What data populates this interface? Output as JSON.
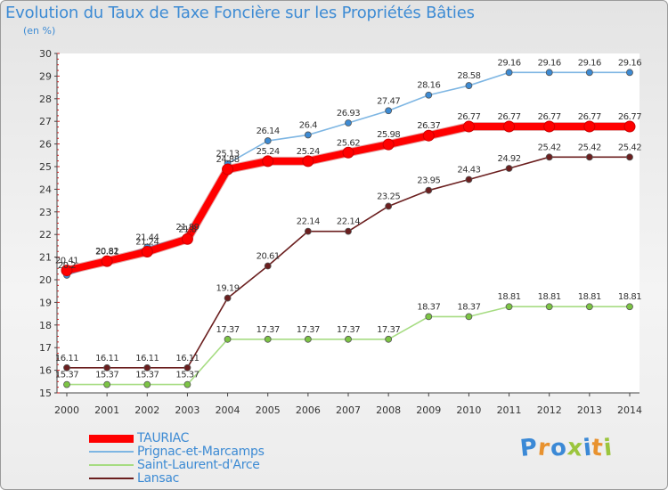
{
  "header": {
    "title": "Evolution du Taux de Taxe Foncière sur les Propriétés Bâties",
    "unit": "(en %)"
  },
  "logo": {
    "letters": [
      "P",
      "r",
      "o",
      "x",
      "i",
      "t",
      "i"
    ],
    "colors": [
      "#3b89d6",
      "#e8922f",
      "#3b89d6",
      "#9bc53d",
      "#3b89d6",
      "#e8922f",
      "#9bc53d"
    ]
  },
  "chart_data": {
    "type": "line",
    "title": "Evolution du Taux de Taxe Foncière sur les Propriétés Bâties",
    "ylabel": "(en %)",
    "xlabel": "",
    "ylim": [
      15,
      30
    ],
    "yticks": [
      "15",
      "16",
      "17",
      "18",
      "19",
      "20",
      "21",
      "22",
      "23",
      "24",
      "25",
      "26",
      "27",
      "28",
      "29",
      "30"
    ],
    "grid": false,
    "legend_position": "bottom-left",
    "categories": [
      "2000",
      "2001",
      "2002",
      "2003",
      "2004",
      "2005",
      "2006",
      "2007",
      "2008",
      "2009",
      "2010",
      "2011",
      "2012",
      "2013",
      "2014"
    ],
    "series": [
      {
        "name": "Lansac",
        "color": "#6b1f1f",
        "marker_color": "#6b1f1f",
        "values": [
          16.11,
          16.11,
          16.11,
          16.11,
          19.19,
          20.61,
          22.14,
          22.14,
          23.25,
          23.95,
          24.43,
          24.92,
          25.42,
          25.42,
          25.42
        ],
        "labels": [
          "16.11",
          "16.11",
          "16.11",
          "16.11",
          "19.19",
          "20.61",
          "22.14",
          "22.14",
          "23.25",
          "23.95",
          "24.43",
          "24.92",
          "25.42",
          "25.42",
          "25.42"
        ]
      },
      {
        "name": "Saint-Laurent-d'Arce",
        "color": "#a6dc82",
        "marker_color": "#7cc444",
        "values": [
          15.37,
          15.37,
          15.37,
          15.37,
          17.37,
          17.37,
          17.37,
          17.37,
          17.37,
          18.37,
          18.37,
          18.81,
          18.81,
          18.81,
          18.81
        ],
        "labels": [
          "15.37",
          "15.37",
          "15.37",
          "15.37",
          "17.37",
          "17.37",
          "17.37",
          "17.37",
          "17.37",
          "18.37",
          "18.37",
          "18.81",
          "18.81",
          "18.81",
          "18.81"
        ]
      },
      {
        "name": "Prignac-et-Marcamps",
        "color": "#7eb6e3",
        "marker_color": "#3d8bd4",
        "values": [
          20.2,
          20.81,
          21.44,
          21.89,
          25.13,
          26.14,
          26.4,
          26.93,
          27.47,
          28.16,
          28.58,
          29.16,
          29.16,
          29.16,
          29.16
        ],
        "labels": [
          "20.2",
          "20.81",
          "21.44",
          "21.89",
          "25.13",
          "26.14",
          "26.4",
          "26.93",
          "27.47",
          "28.16",
          "28.58",
          "29.16",
          "29.16",
          "29.16",
          "29.16"
        ]
      },
      {
        "name": "TAURIAC",
        "color": "#ff0000",
        "marker_color": "#ff0000",
        "values": [
          20.41,
          20.82,
          21.24,
          21.8,
          24.88,
          25.24,
          25.24,
          25.62,
          25.98,
          26.37,
          26.77,
          26.77,
          26.77,
          26.77,
          26.77
        ],
        "labels": [
          "20.41",
          "20.82",
          "21.24",
          "21.8",
          "24.88",
          "25.24",
          "25.24",
          "25.62",
          "25.98",
          "26.37",
          "26.77",
          "26.77",
          "26.77",
          "26.77",
          "26.77"
        ]
      }
    ],
    "legend": [
      {
        "name": "TAURIAC",
        "color": "#ff0000"
      },
      {
        "name": "Prignac-et-Marcamps",
        "color": "#7eb6e3"
      },
      {
        "name": "Saint-Laurent-d'Arce",
        "color": "#a6dc82"
      },
      {
        "name": "Lansac",
        "color": "#6b1f1f"
      }
    ]
  }
}
